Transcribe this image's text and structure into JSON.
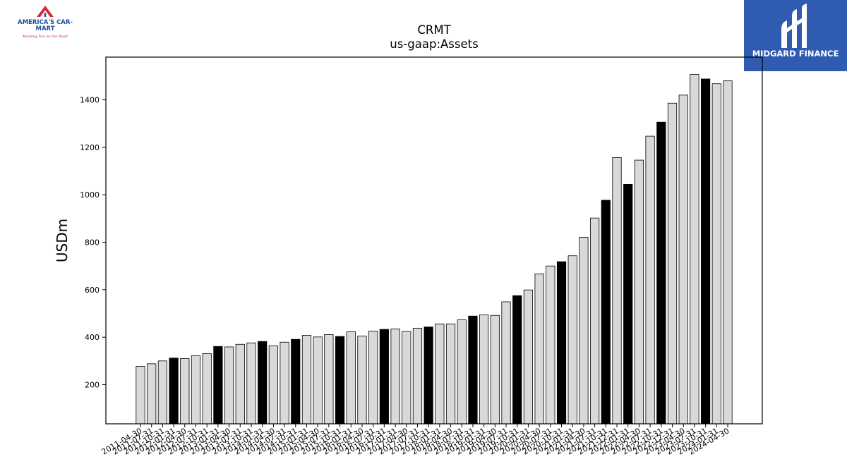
{
  "brand_left": {
    "name": "AMERICA'S CAR-MART",
    "tagline": "Keeping You on the Road"
  },
  "brand_right": {
    "name": "MIDGARD FINANCE"
  },
  "chart_data": {
    "type": "bar",
    "title": "CRMT",
    "subtitle": "us-gaap:Assets",
    "xlabel": "",
    "ylabel": "USDm",
    "ylim": [
      35,
      1580
    ],
    "yticks": [
      200,
      400,
      600,
      800,
      1000,
      1200,
      1400
    ],
    "grid": false,
    "colors": {
      "bar": "#d9d9d9",
      "highlight": "#000000",
      "edge": "#000000"
    },
    "categories": [
      "2011-04-30",
      "2011-07-31",
      "2011-10-31",
      "2012-01-31",
      "2012-04-30",
      "2012-07-31",
      "2012-10-31",
      "2013-01-31",
      "2013-04-30",
      "2013-07-31",
      "2013-10-31",
      "2014-01-31",
      "2014-04-30",
      "2014-07-31",
      "2014-10-31",
      "2015-01-31",
      "2015-04-30",
      "2015-07-31",
      "2015-10-31",
      "2016-01-31",
      "2016-04-30",
      "2016-07-31",
      "2016-10-31",
      "2017-01-31",
      "2017-04-30",
      "2017-07-31",
      "2017-10-31",
      "2018-01-31",
      "2018-04-30",
      "2018-07-31",
      "2018-10-31",
      "2019-01-31",
      "2019-04-30",
      "2019-07-31",
      "2019-10-31",
      "2020-01-31",
      "2020-04-30",
      "2020-07-31",
      "2020-10-31",
      "2021-01-31",
      "2021-04-30",
      "2021-07-31",
      "2021-10-31",
      "2021-12-31",
      "2022-01-31",
      "2022-04-30",
      "2022-07-31",
      "2022-10-31",
      "2022-12-31",
      "2023-04-30",
      "2023-07-31",
      "2023-10-31",
      "2024-01-31",
      "2024-04-30"
    ],
    "values": [
      277,
      288,
      300,
      312,
      310,
      322,
      331,
      361,
      359,
      370,
      376,
      382,
      364,
      379,
      391,
      408,
      401,
      411,
      403,
      423,
      405,
      426,
      433,
      435,
      424,
      438,
      443,
      456,
      456,
      473,
      489,
      494,
      492,
      549,
      575,
      599,
      667,
      700,
      718,
      743,
      821,
      902,
      977,
      1157,
      1044,
      1146,
      1247,
      1306,
      1386,
      1420,
      1507,
      1488,
      1468,
      1480
    ],
    "highlighted": [
      3,
      7,
      11,
      14,
      18,
      22,
      26,
      30,
      34,
      38,
      42,
      44,
      47,
      51
    ]
  }
}
